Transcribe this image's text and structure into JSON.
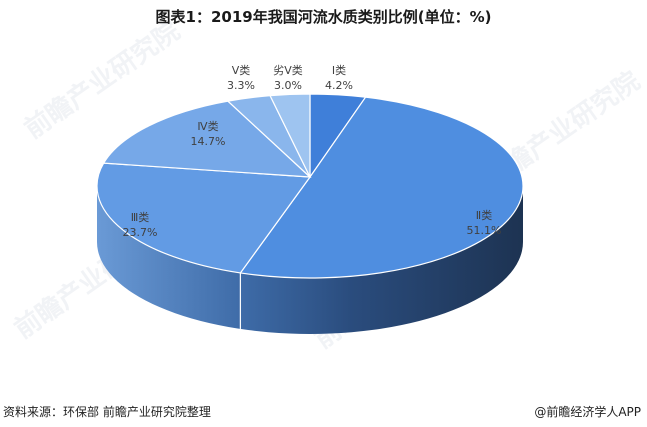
{
  "title": "图表1：2019年我国河流水质类别比例(单位：%)",
  "footer": {
    "source": "资料来源：环保部 前瞻产业研究院整理",
    "credit": "@前瞻经济学人APP"
  },
  "watermark": "前瞻产业研究院",
  "chart_data": {
    "type": "pie",
    "style": "3d-pie",
    "title": "图表1：2019年我国河流水质类别比例(单位：%)",
    "unit": "%",
    "categories": [
      "I类",
      "II类",
      "III类",
      "IV类",
      "V类",
      "劣V类"
    ],
    "values": [
      4.2,
      51.1,
      23.7,
      14.7,
      3.3,
      3.0
    ],
    "colors": [
      "#3f7fd9",
      "#4f8ee0",
      "#629be4",
      "#76a8e8",
      "#8ab6ec",
      "#9ec4f0"
    ],
    "side_colors": [
      "#2a5a9c",
      "#1f3a5f",
      "#4a78b4",
      "#5a88c4",
      "#6a98d0",
      "#7aa8dc"
    ],
    "labels": [
      {
        "name": "Ⅰ类",
        "value": "4.2%"
      },
      {
        "name": "Ⅱ类",
        "value": "51.1%"
      },
      {
        "name": "Ⅲ类",
        "value": "23.7%"
      },
      {
        "name": "Ⅳ类",
        "value": "14.7%"
      },
      {
        "name": "Ⅴ类",
        "value": "3.3%"
      },
      {
        "name": "劣Ⅴ类",
        "value": "3.0%"
      }
    ],
    "start_angle": "12 o'clock, clockwise",
    "legend": "none (data labels)"
  }
}
